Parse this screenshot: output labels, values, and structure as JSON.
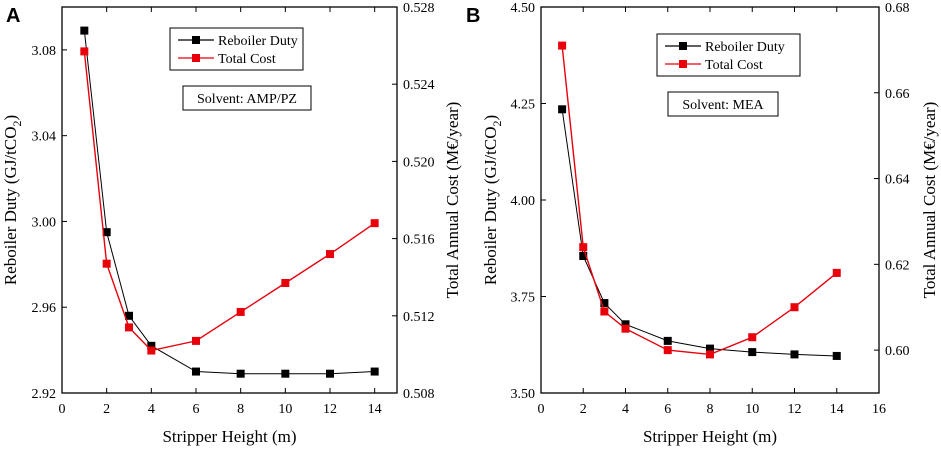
{
  "chart_data": [
    {
      "panel": "A",
      "type": "line",
      "xlabel": "Stripper Height (m)",
      "ylabel": "Reboiler Duty (GJ/tCO",
      "ylabel_sub": "2",
      "ylabel_end": ")",
      "y2label": "Total Annual Cost (M€/year)",
      "xlim": [
        0,
        15
      ],
      "ylim": [
        2.92,
        3.1
      ],
      "y2lim": [
        0.508,
        0.528
      ],
      "xticks": [
        0,
        2,
        4,
        6,
        8,
        10,
        12,
        14
      ],
      "yticks": [
        2.92,
        2.96,
        3.0,
        3.04,
        3.08
      ],
      "y2ticks": [
        0.508,
        0.512,
        0.516,
        0.52,
        0.524,
        0.528
      ],
      "x": [
        1,
        2,
        3,
        4,
        6,
        8,
        10,
        12,
        14
      ],
      "series": [
        {
          "name": "Reboiler Duty",
          "axis": "left",
          "color": "#000000",
          "values": [
            3.089,
            2.995,
            2.956,
            2.942,
            2.93,
            2.929,
            2.929,
            2.929,
            2.93
          ]
        },
        {
          "name": "Total Cost",
          "axis": "right",
          "color": "#e8000b",
          "values": [
            0.5257,
            0.5147,
            0.5114,
            0.5102,
            0.5107,
            0.5122,
            0.5137,
            0.5152,
            0.5168
          ]
        }
      ],
      "annotation": "Solvent: AMP/PZ"
    },
    {
      "panel": "B",
      "type": "line",
      "xlabel": "Stripper Height (m)",
      "ylabel": "Reboiler Duty (GJ/tCO",
      "ylabel_sub": "2",
      "ylabel_end": ")",
      "y2label": "Total Annual Cost (M€/year)",
      "xlim": [
        0,
        16
      ],
      "ylim": [
        3.5,
        4.5
      ],
      "y2lim": [
        0.59,
        0.68
      ],
      "xticks": [
        0,
        2,
        4,
        6,
        8,
        10,
        12,
        14,
        16
      ],
      "yticks": [
        3.5,
        3.75,
        4.0,
        4.25,
        4.5
      ],
      "y2ticks": [
        0.6,
        0.62,
        0.64,
        0.66,
        0.68
      ],
      "x": [
        1,
        2,
        3,
        4,
        6,
        8,
        10,
        12,
        14
      ],
      "series": [
        {
          "name": "Reboiler Duty",
          "axis": "left",
          "color": "#000000",
          "values": [
            4.235,
            3.855,
            3.733,
            3.678,
            3.635,
            3.615,
            3.606,
            3.6,
            3.596
          ]
        },
        {
          "name": "Total Cost",
          "axis": "right",
          "color": "#e8000b",
          "values": [
            0.671,
            0.624,
            0.609,
            0.605,
            0.6,
            0.599,
            0.603,
            0.61,
            0.618
          ]
        }
      ],
      "annotation": "Solvent: MEA"
    }
  ]
}
